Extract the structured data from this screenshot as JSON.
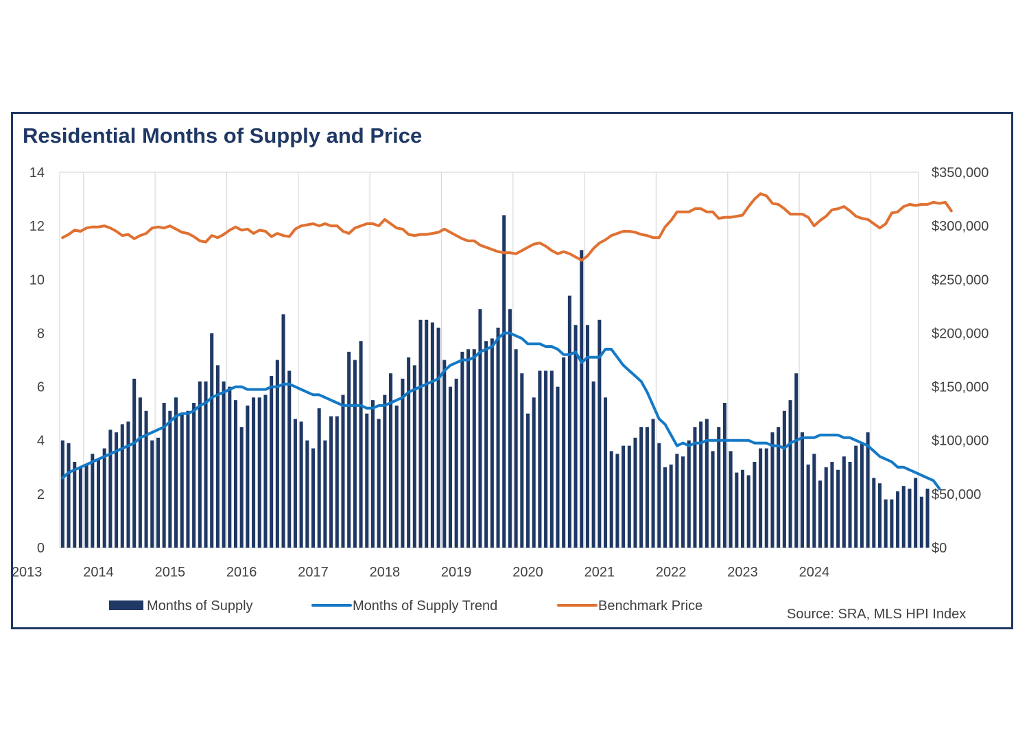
{
  "chart_data": {
    "type": "bar-line-combo",
    "title": "Residential Months of Supply and Price",
    "source": "Source: SRA, MLS HPI Index",
    "y_left": {
      "min": 0,
      "max": 14,
      "ticks": [
        "0",
        "2",
        "4",
        "6",
        "8",
        "10",
        "12",
        "14"
      ]
    },
    "y_right": {
      "min": 0,
      "max": 350000,
      "ticks": [
        "$0",
        "$50,000",
        "$100,000",
        "$150,000",
        "$200,000",
        "$250,000",
        "$300,000",
        "$350,000"
      ]
    },
    "x_labels": [
      "2013",
      "2014",
      "2015",
      "2016",
      "2017",
      "2018",
      "2019",
      "2020",
      "2021",
      "2022",
      "2023",
      "2024"
    ],
    "x_start": "2012-09",
    "months": 144,
    "series": [
      {
        "name": "Months of Supply",
        "type": "bar",
        "color": "#1f3864",
        "axis": "left",
        "values": [
          4.0,
          3.9,
          3.2,
          3.0,
          3.1,
          3.5,
          3.3,
          3.7,
          4.4,
          4.3,
          4.6,
          4.7,
          6.3,
          5.6,
          5.1,
          4.0,
          4.1,
          5.4,
          5.1,
          5.6,
          5.0,
          5.1,
          5.4,
          6.2,
          6.2,
          8.0,
          6.8,
          6.2,
          6.0,
          5.5,
          4.5,
          5.3,
          5.6,
          5.6,
          5.7,
          6.4,
          7.0,
          8.7,
          6.6,
          4.8,
          4.7,
          4.0,
          3.7,
          5.2,
          4.0,
          4.9,
          4.9,
          5.7,
          7.3,
          7.0,
          7.7,
          5.0,
          5.5,
          4.8,
          5.7,
          6.5,
          5.3,
          6.3,
          7.1,
          6.8,
          8.5,
          8.5,
          8.4,
          8.2,
          7.0,
          6.0,
          6.3,
          7.3,
          7.4,
          7.4,
          8.9,
          7.7,
          7.8,
          8.2,
          12.4,
          8.9,
          7.4,
          6.5,
          5.0,
          5.6,
          6.6,
          6.6,
          6.6,
          6.0,
          7.1,
          9.4,
          8.3,
          11.1,
          8.3,
          6.2,
          8.5,
          5.6,
          3.6,
          3.5,
          3.8,
          3.8,
          4.1,
          4.5,
          4.5,
          4.8,
          3.9,
          3.0,
          3.1,
          3.5,
          3.4,
          4.0,
          4.5,
          4.7,
          4.8,
          3.6,
          4.5,
          5.4,
          3.6,
          2.8,
          2.9,
          2.7,
          3.2,
          3.7,
          3.7,
          4.3,
          4.5,
          5.1,
          5.5,
          6.5,
          4.3,
          3.1,
          3.5,
          2.5,
          3.0,
          3.2,
          2.9,
          3.4,
          3.2,
          3.8,
          3.9,
          4.3,
          2.6,
          2.4,
          1.8,
          1.8,
          2.1,
          2.3,
          2.2,
          2.6,
          1.9,
          2.2
        ]
      },
      {
        "name": "Months of Supply Trend",
        "type": "line",
        "color": "#1479c6",
        "axis": "left",
        "values": [
          2.6,
          2.8,
          2.9,
          3.0,
          3.1,
          3.2,
          3.3,
          3.4,
          3.5,
          3.6,
          3.7,
          3.8,
          3.9,
          4.1,
          4.2,
          4.3,
          4.4,
          4.5,
          4.7,
          4.9,
          5.0,
          5.0,
          5.1,
          5.3,
          5.4,
          5.6,
          5.7,
          5.8,
          5.9,
          6.0,
          6.0,
          5.9,
          5.9,
          5.9,
          5.9,
          6.0,
          6.0,
          6.1,
          6.1,
          6.0,
          5.9,
          5.8,
          5.7,
          5.7,
          5.6,
          5.5,
          5.4,
          5.3,
          5.3,
          5.3,
          5.3,
          5.2,
          5.2,
          5.3,
          5.3,
          5.4,
          5.5,
          5.6,
          5.8,
          5.9,
          6.0,
          6.1,
          6.2,
          6.3,
          6.6,
          6.8,
          6.9,
          7.0,
          7.0,
          7.1,
          7.3,
          7.4,
          7.5,
          7.8,
          8.0,
          8.0,
          7.9,
          7.8,
          7.6,
          7.6,
          7.6,
          7.5,
          7.5,
          7.4,
          7.2,
          7.2,
          7.3,
          6.9,
          7.1,
          7.1,
          7.1,
          7.4,
          7.4,
          7.1,
          6.8,
          6.6,
          6.4,
          6.2,
          5.8,
          5.3,
          4.8,
          4.6,
          4.2,
          3.8,
          3.9,
          3.8,
          3.9,
          3.9,
          4.0,
          4.0,
          4.0,
          4.0,
          4.0,
          4.0,
          4.0,
          4.0,
          3.9,
          3.9,
          3.9,
          3.8,
          3.8,
          3.7,
          3.9,
          4.0,
          4.1,
          4.1,
          4.1,
          4.2,
          4.2,
          4.2,
          4.2,
          4.1,
          4.1,
          4.0,
          3.9,
          3.8,
          3.6,
          3.4,
          3.3,
          3.2,
          3.0,
          3.0,
          2.9,
          2.8,
          2.7,
          2.6,
          2.5,
          2.2
        ]
      },
      {
        "name": "Benchmark Price",
        "type": "line",
        "color": "#e07132",
        "axis": "right",
        "values": [
          289000,
          292000,
          296000,
          295000,
          298000,
          299000,
          299000,
          300000,
          298000,
          295000,
          291000,
          292000,
          288000,
          291000,
          293000,
          298000,
          299000,
          298000,
          300000,
          297000,
          294000,
          293000,
          290000,
          286000,
          285000,
          291000,
          289000,
          292000,
          296000,
          299000,
          296000,
          297000,
          293000,
          296000,
          295000,
          290000,
          293000,
          291000,
          290000,
          297000,
          300000,
          301000,
          302000,
          300000,
          302000,
          300000,
          300000,
          295000,
          293000,
          298000,
          300000,
          302000,
          302000,
          300000,
          306000,
          302000,
          298000,
          297000,
          292000,
          291000,
          292000,
          292000,
          293000,
          294000,
          297000,
          294000,
          291000,
          288000,
          286000,
          286000,
          282000,
          280000,
          278000,
          276000,
          275000,
          275000,
          274000,
          277000,
          280000,
          283000,
          284000,
          281000,
          277000,
          274000,
          276000,
          274000,
          271000,
          268000,
          272000,
          279000,
          284000,
          287000,
          291000,
          293000,
          295000,
          295000,
          294000,
          292000,
          291000,
          289000,
          289000,
          299000,
          305000,
          313000,
          313000,
          313000,
          316000,
          316000,
          313000,
          313000,
          307000,
          308000,
          308000,
          309000,
          310000,
          318000,
          325000,
          330000,
          328000,
          321000,
          320000,
          316000,
          311000,
          311000,
          311000,
          308000,
          300000,
          305000,
          309000,
          315000,
          316000,
          318000,
          314000,
          309000,
          307000,
          306000,
          302000,
          298000,
          302000,
          312000,
          313000,
          318000,
          320000,
          319000,
          320000,
          320000,
          322000,
          321000,
          322000,
          314000
        ]
      }
    ]
  },
  "legend": [
    {
      "label": "Months of Supply",
      "color": "#1f3864",
      "marker": "bar"
    },
    {
      "label": "Months of Supply Trend",
      "color": "#1479c6",
      "marker": "line"
    },
    {
      "label": "Benchmark Price",
      "color": "#e07132",
      "marker": "line"
    }
  ]
}
